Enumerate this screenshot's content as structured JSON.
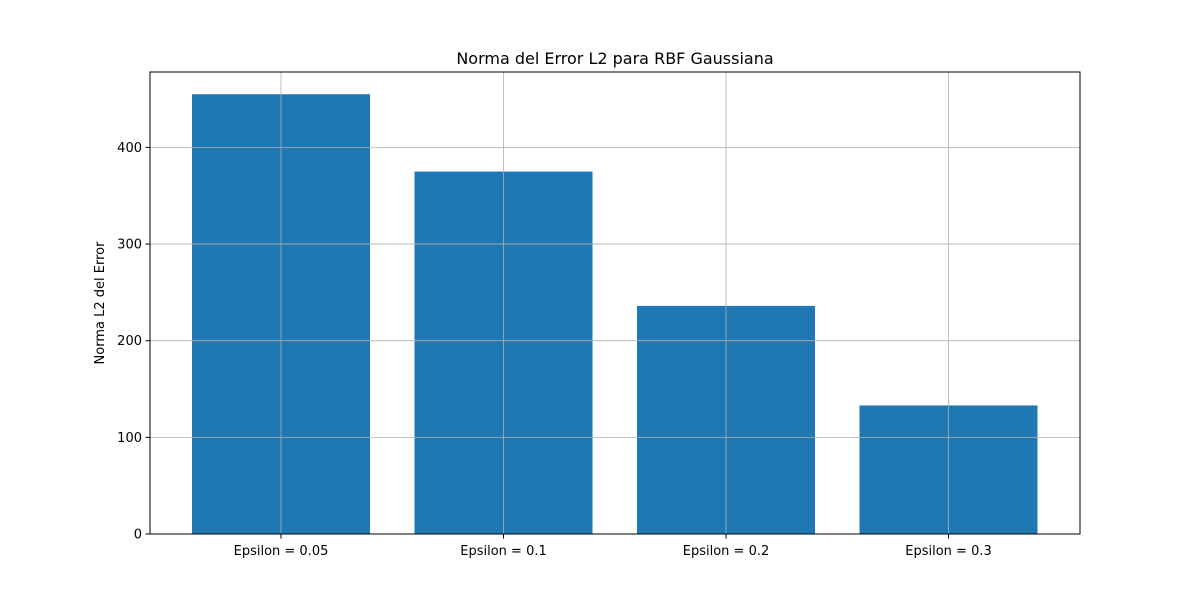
{
  "chart_data": {
    "type": "bar",
    "title": "Norma del Error L2 para RBF Gaussiana",
    "xlabel": "",
    "ylabel": "Norma L2 del Error",
    "categories": [
      "Epsilon = 0.05",
      "Epsilon = 0.1",
      "Epsilon = 0.2",
      "Epsilon = 0.3"
    ],
    "values": [
      455,
      375,
      236,
      133
    ],
    "ylim": [
      0,
      478
    ],
    "yticks": [
      0,
      100,
      200,
      300,
      400
    ],
    "ytick_labels": [
      "0",
      "100",
      "200",
      "300",
      "400"
    ],
    "grid": true,
    "bar_color": "#1f77b4"
  }
}
